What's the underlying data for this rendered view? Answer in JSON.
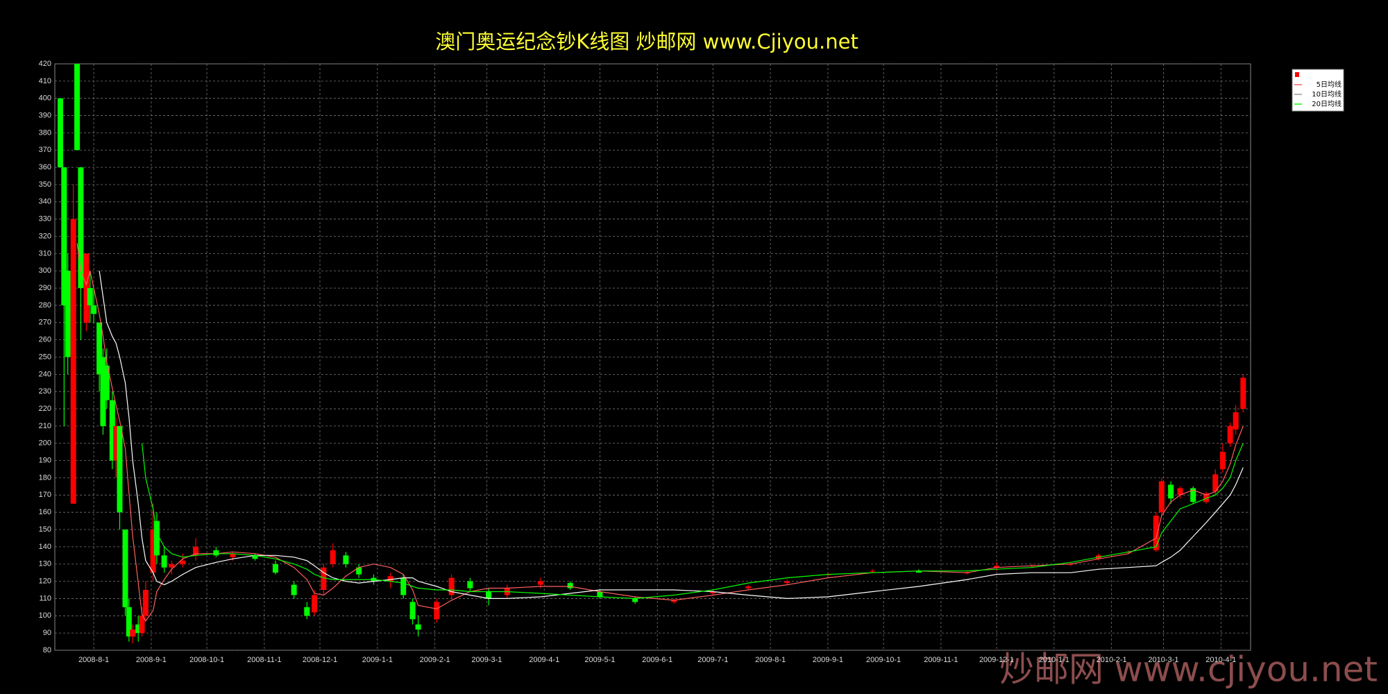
{
  "chart_data": {
    "type": "candlestick",
    "title": "澳门奥运纪念钞K线图  炒邮网 www.Cjiyou.net",
    "watermark": "炒邮网 www.cjiyou.net",
    "up_color": "#ff0000",
    "down_color": "#00ff00",
    "grid": true,
    "xlim": [
      "2008-7-11",
      "2010-4-17"
    ],
    "xticks": [
      "2008-8-1",
      "2008-9-1",
      "2008-10-1",
      "2008-11-1",
      "2008-12-1",
      "2009-1-1",
      "2009-2-1",
      "2009-3-1",
      "2009-4-1",
      "2009-5-1",
      "2009-6-1",
      "2009-7-1",
      "2009-8-1",
      "2009-9-1",
      "2009-10-1",
      "2009-11-1",
      "2009-12-1",
      "2010-1-1",
      "2010-2-1",
      "2010-3-1",
      "2010-4-1"
    ],
    "ylim": [
      80,
      420
    ],
    "yticks": [
      80,
      90,
      100,
      110,
      120,
      130,
      140,
      150,
      160,
      170,
      180,
      190,
      200,
      210,
      220,
      230,
      240,
      250,
      260,
      270,
      280,
      290,
      300,
      310,
      320,
      330,
      340,
      350,
      360,
      370,
      380,
      390,
      400,
      410,
      420
    ],
    "x": [
      "2008-7-14",
      "2008-7-16",
      "2008-7-18",
      "2008-7-21",
      "2008-7-23",
      "2008-7-25",
      "2008-7-28",
      "2008-7-30",
      "2008-8-1",
      "2008-8-4",
      "2008-8-6",
      "2008-8-8",
      "2008-8-11",
      "2008-8-13",
      "2008-8-15",
      "2008-8-18",
      "2008-8-20",
      "2008-8-22",
      "2008-8-25",
      "2008-8-27",
      "2008-8-29",
      "2008-9-2",
      "2008-9-4",
      "2008-9-8",
      "2008-9-12",
      "2008-9-18",
      "2008-9-25",
      "2008-10-6",
      "2008-10-15",
      "2008-10-27",
      "2008-11-7",
      "2008-11-17",
      "2008-11-24",
      "2008-11-28",
      "2008-12-3",
      "2008-12-8",
      "2008-12-15",
      "2008-12-22",
      "2008-12-30",
      "2009-1-8",
      "2009-1-15",
      "2009-1-20",
      "2009-1-23",
      "2009-2-2",
      "2009-2-10",
      "2009-2-20",
      "2009-3-2",
      "2009-3-12",
      "2009-3-30",
      "2009-4-15",
      "2009-5-1",
      "2009-5-20",
      "2009-6-10",
      "2009-7-1",
      "2009-7-20",
      "2009-8-10",
      "2009-9-1",
      "2009-9-25",
      "2009-10-20",
      "2009-11-15",
      "2009-12-1",
      "2009-12-20",
      "2010-1-10",
      "2010-1-25",
      "2010-2-10",
      "2010-2-25",
      "2010-2-28",
      "2010-3-5",
      "2010-3-10",
      "2010-3-17",
      "2010-3-24",
      "2010-3-29",
      "2010-4-2",
      "2010-4-6",
      "2010-4-9",
      "2010-4-13"
    ],
    "open": [
      400,
      360,
      300,
      165,
      420,
      360,
      270,
      290,
      280,
      270,
      250,
      245,
      225,
      190,
      210,
      150,
      105,
      88,
      95,
      90,
      100,
      125,
      155,
      135,
      128,
      130,
      135,
      138,
      134,
      135,
      130,
      118,
      105,
      102,
      115,
      130,
      135,
      128,
      122,
      120,
      122,
      108,
      95,
      98,
      112,
      120,
      114,
      112,
      118,
      119,
      114,
      110,
      108,
      113,
      116,
      119,
      124,
      126,
      126,
      125,
      128,
      129,
      130,
      133,
      137,
      138,
      160,
      176,
      170,
      174,
      166,
      172,
      185,
      200,
      208,
      220
    ],
    "high": [
      400,
      360,
      310,
      350,
      420,
      360,
      310,
      300,
      290,
      270,
      255,
      255,
      230,
      215,
      210,
      150,
      110,
      95,
      100,
      105,
      120,
      165,
      160,
      140,
      132,
      136,
      145,
      140,
      137,
      136,
      132,
      120,
      108,
      115,
      130,
      142,
      137,
      130,
      124,
      125,
      124,
      110,
      100,
      110,
      124,
      122,
      116,
      118,
      122,
      120,
      115,
      111,
      110,
      115,
      118,
      121,
      125,
      127,
      127,
      126,
      131,
      130,
      131,
      136,
      138,
      160,
      180,
      178,
      175,
      175,
      172,
      185,
      200,
      212,
      222,
      240
    ],
    "low": [
      360,
      210,
      240,
      165,
      370,
      260,
      265,
      270,
      270,
      230,
      205,
      220,
      185,
      180,
      150,
      100,
      85,
      84,
      85,
      88,
      98,
      120,
      130,
      125,
      124,
      128,
      132,
      134,
      132,
      132,
      124,
      110,
      98,
      100,
      112,
      128,
      128,
      122,
      118,
      116,
      110,
      95,
      88,
      96,
      110,
      114,
      106,
      110,
      116,
      115,
      110,
      107,
      107,
      112,
      115,
      118,
      123,
      125,
      125,
      124,
      126,
      128,
      129,
      132,
      136,
      137,
      158,
      165,
      168,
      165,
      165,
      170,
      183,
      198,
      205,
      218
    ],
    "close": [
      360,
      280,
      250,
      330,
      370,
      290,
      310,
      280,
      275,
      240,
      210,
      225,
      190,
      210,
      160,
      105,
      88,
      92,
      90,
      100,
      115,
      150,
      135,
      128,
      130,
      132,
      140,
      135,
      136,
      133,
      125,
      112,
      100,
      112,
      128,
      138,
      130,
      124,
      120,
      123,
      112,
      98,
      92,
      108,
      122,
      116,
      110,
      116,
      120,
      116,
      111,
      108,
      109,
      114,
      117,
      120,
      124,
      126,
      125,
      125,
      129,
      129,
      130,
      135,
      137,
      158,
      178,
      168,
      174,
      166,
      171,
      182,
      195,
      210,
      218,
      238
    ],
    "moving_averages": [
      {
        "name": "5日均线",
        "color": "#ff6060",
        "values": [
          null,
          null,
          null,
          null,
          316,
          300,
          292,
          300,
          290,
          275,
          262,
          247,
          232,
          222,
          213,
          197,
          171,
          146,
          119,
          101,
          97,
          103,
          114,
          121,
          127,
          133,
          136,
          136,
          137,
          136,
          134,
          128,
          121,
          113,
          112,
          116,
          123,
          128,
          130,
          128,
          124,
          115,
          106,
          104,
          109,
          114,
          116,
          116,
          117,
          117,
          114,
          111,
          109,
          112,
          115,
          118,
          122,
          125,
          126,
          125,
          128,
          129,
          130,
          133,
          136,
          145,
          158,
          166,
          170,
          173,
          170,
          172,
          178,
          188,
          199,
          210
        ]
      },
      {
        "name": "10日均线",
        "color": "#ffffff",
        "values": [
          null,
          null,
          null,
          null,
          null,
          null,
          null,
          null,
          null,
          300,
          285,
          270,
          262,
          258,
          250,
          235,
          215,
          190,
          165,
          145,
          132,
          125,
          120,
          118,
          120,
          124,
          128,
          131,
          133,
          135,
          135,
          134,
          132,
          129,
          125,
          122,
          120,
          119,
          120,
          121,
          122,
          122,
          120,
          117,
          114,
          112,
          110,
          110,
          111,
          113,
          115,
          115,
          115,
          114,
          112,
          110,
          111,
          114,
          117,
          121,
          124,
          125,
          125,
          127,
          128,
          129,
          131,
          134,
          138,
          146,
          154,
          160,
          165,
          170,
          176,
          186
        ]
      },
      {
        "name": "20日均线",
        "color": "#00ff00",
        "values": [
          null,
          null,
          null,
          null,
          null,
          null,
          null,
          null,
          null,
          null,
          null,
          null,
          null,
          null,
          null,
          null,
          null,
          null,
          null,
          200,
          180,
          162,
          148,
          140,
          136,
          134,
          135,
          136,
          136,
          135,
          133,
          130,
          127,
          124,
          122,
          121,
          121,
          121,
          121,
          120,
          119,
          117,
          116,
          115,
          115,
          114,
          114,
          114,
          113,
          112,
          111,
          110,
          112,
          115,
          119,
          122,
          124,
          125,
          126,
          126,
          127,
          128,
          131,
          134,
          137,
          140,
          148,
          155,
          162,
          165,
          168,
          170,
          174,
          180,
          190,
          200
        ]
      }
    ]
  }
}
